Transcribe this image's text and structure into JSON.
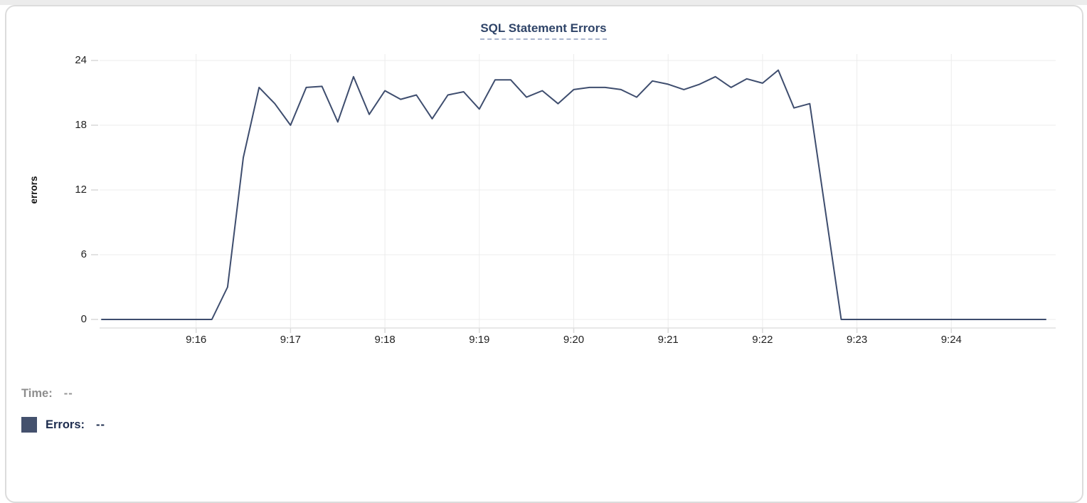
{
  "chart_data": {
    "type": "line",
    "title": "SQL Statement Errors",
    "xlabel": "",
    "ylabel": "errors",
    "y_tick_labels": [
      0,
      6,
      12,
      18,
      24
    ],
    "ylim": [
      0,
      24
    ],
    "x_tick_labels": [
      "9:16",
      "9:17",
      "9:18",
      "9:19",
      "9:20",
      "9:21",
      "9:22",
      "9:23",
      "9:24"
    ],
    "x_range": [
      "9:15:00",
      "9:25:00"
    ],
    "sample_interval_seconds": 10,
    "grid": true,
    "legend_position": "bottom-left",
    "series": [
      {
        "name": "Errors",
        "color": "#3e4d6e",
        "times": [
          "9:15:00",
          "9:15:10",
          "9:15:20",
          "9:15:30",
          "9:15:40",
          "9:15:50",
          "9:16:00",
          "9:16:10",
          "9:16:20",
          "9:16:30",
          "9:16:40",
          "9:16:50",
          "9:17:00",
          "9:17:10",
          "9:17:20",
          "9:17:30",
          "9:17:40",
          "9:17:50",
          "9:18:00",
          "9:18:10",
          "9:18:20",
          "9:18:30",
          "9:18:40",
          "9:18:50",
          "9:19:00",
          "9:19:10",
          "9:19:20",
          "9:19:30",
          "9:19:40",
          "9:19:50",
          "9:20:00",
          "9:20:10",
          "9:20:20",
          "9:20:30",
          "9:20:40",
          "9:20:50",
          "9:21:00",
          "9:21:10",
          "9:21:20",
          "9:21:30",
          "9:21:40",
          "9:21:50",
          "9:22:00",
          "9:22:10",
          "9:22:20",
          "9:22:30",
          "9:22:40",
          "9:22:50",
          "9:23:00",
          "9:23:10",
          "9:23:20",
          "9:23:30",
          "9:23:40",
          "9:23:50",
          "9:24:00",
          "9:24:10",
          "9:24:20",
          "9:24:30",
          "9:24:40",
          "9:24:50",
          "9:25:00"
        ],
        "values": [
          0,
          0,
          0,
          0,
          0,
          0,
          0,
          0,
          3,
          15,
          21.5,
          20,
          18,
          21.5,
          21.6,
          18.3,
          22.5,
          19,
          21.2,
          20.4,
          20.8,
          18.6,
          20.8,
          21.1,
          19.5,
          22.2,
          22.2,
          20.6,
          21.2,
          20,
          21.3,
          21.5,
          21.5,
          21.3,
          20.6,
          22.1,
          21.8,
          21.3,
          21.8,
          22.5,
          21.5,
          22.3,
          21.9,
          23.1,
          19.6,
          20,
          10,
          0,
          0,
          0,
          0,
          0,
          0,
          0,
          0,
          0,
          0,
          0,
          0,
          0,
          0
        ]
      }
    ]
  },
  "tooltip": {
    "time_label": "Time:",
    "time_value": "--",
    "series_label": "Errors:",
    "series_value": "--"
  },
  "colors": {
    "line": "#3e4d6e",
    "title_text": "#2f4468",
    "title_underline": "#a9b4cd",
    "grid_line": "#ececec",
    "axis_line": "#e0e0e0",
    "tick_mark": "#d9d9d9",
    "axis_text": "#1f1f1f",
    "tooltip_time_text": "#8d8d8d",
    "tooltip_errors_text": "#1d2c4e",
    "legend_swatch": "#44516d",
    "card_border": "#dcdcdc",
    "top_strip": "#ececec"
  }
}
